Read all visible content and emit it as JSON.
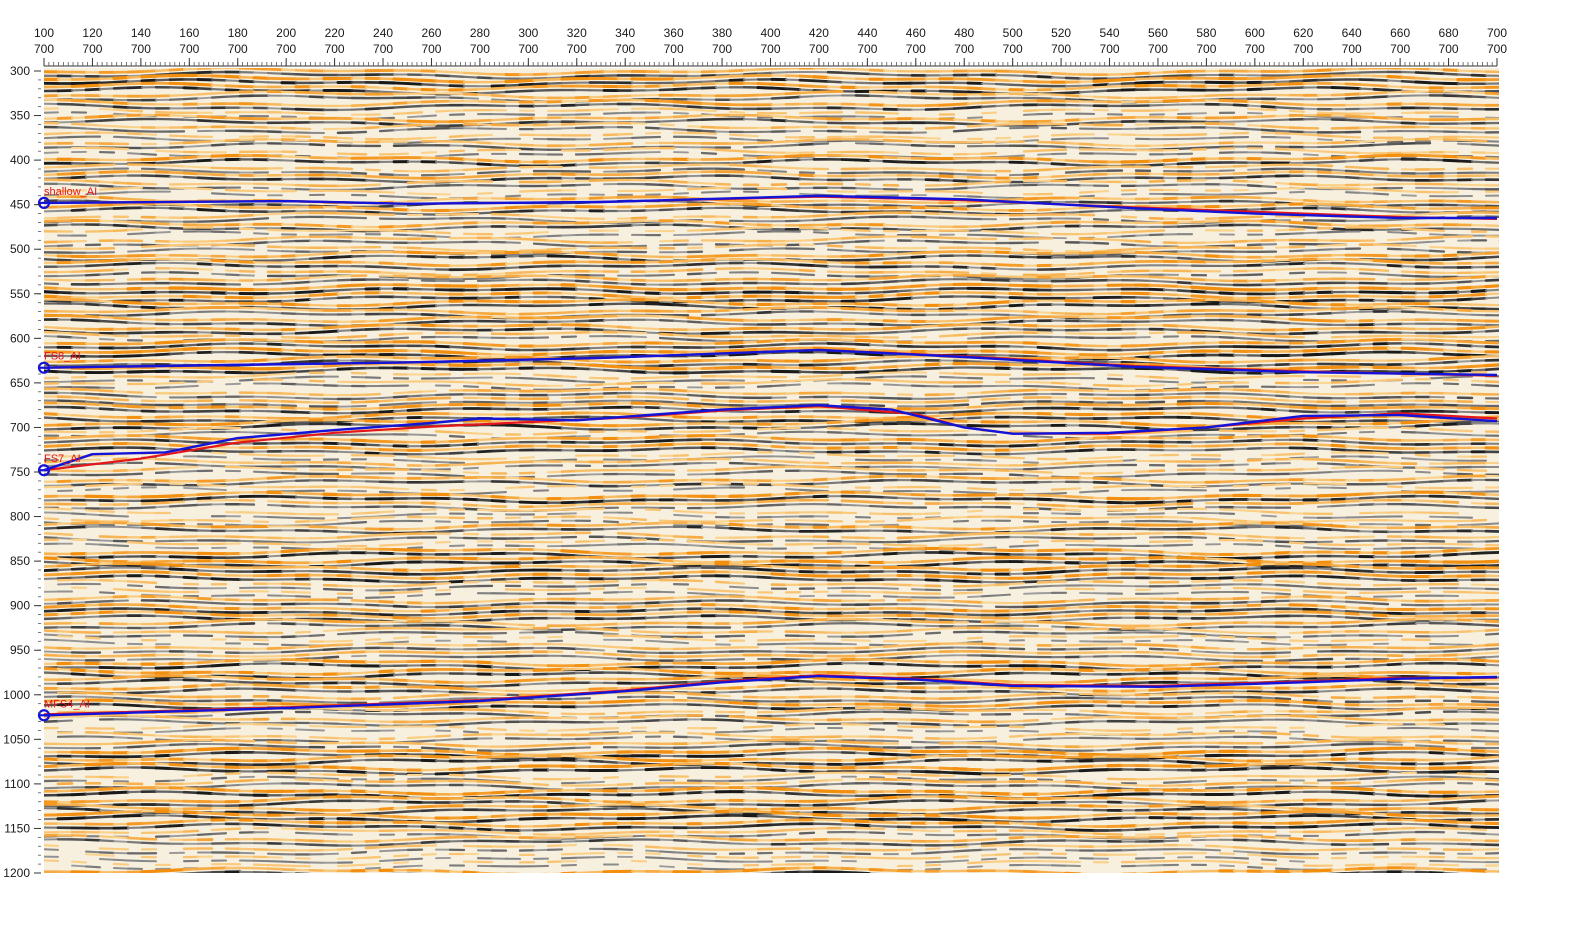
{
  "chart_data": {
    "type": "line",
    "title": "",
    "xlabel": "",
    "ylabel": "",
    "top_axis": {
      "trace_ticks": [
        "100",
        "120",
        "140",
        "160",
        "180",
        "200",
        "220",
        "240",
        "260",
        "280",
        "300",
        "320",
        "340",
        "360",
        "380",
        "400",
        "420",
        "440",
        "460",
        "480",
        "500",
        "520",
        "540",
        "560",
        "580",
        "600",
        "620",
        "640",
        "660",
        "680",
        "700"
      ],
      "line_ticks": [
        "700",
        "700",
        "700",
        "700",
        "700",
        "700",
        "700",
        "700",
        "700",
        "700",
        "700",
        "700",
        "700",
        "700",
        "700",
        "700",
        "700",
        "700",
        "700",
        "700",
        "700",
        "700",
        "700",
        "700",
        "700",
        "700",
        "700",
        "700",
        "700",
        "700",
        "700"
      ]
    },
    "xlim": [
      100,
      700
    ],
    "ylim": [
      300,
      1200
    ],
    "y_ticks": [
      "300",
      "350",
      "400",
      "450",
      "500",
      "550",
      "600",
      "650",
      "700",
      "750",
      "800",
      "850",
      "900",
      "950",
      "1000",
      "1050",
      "1100",
      "1150",
      "1200"
    ],
    "background": "seismic section, yellow/orange positive and gray/black negative amplitudes",
    "colors": {
      "reference": "#e4161b",
      "interpreted": "#1414d8",
      "positive": "#f2a618",
      "negative": "#262626"
    },
    "series": [
      {
        "name": "shallow_AI",
        "red": [
          [
            100,
            448
          ],
          [
            200,
            446
          ],
          [
            250,
            449
          ],
          [
            330,
            447
          ],
          [
            420,
            441
          ],
          [
            480,
            445
          ],
          [
            550,
            453
          ],
          [
            600,
            458
          ],
          [
            660,
            464
          ],
          [
            700,
            466
          ]
        ],
        "blue": [
          [
            100,
            448
          ],
          [
            200,
            446
          ],
          [
            250,
            449
          ],
          [
            330,
            447
          ],
          [
            420,
            440
          ],
          [
            480,
            444
          ],
          [
            550,
            454
          ],
          [
            600,
            460
          ],
          [
            660,
            465
          ],
          [
            700,
            465
          ]
        ]
      },
      {
        "name": "FS8_AI",
        "red": [
          [
            100,
            633
          ],
          [
            250,
            627
          ],
          [
            330,
            622
          ],
          [
            420,
            613
          ],
          [
            480,
            620
          ],
          [
            550,
            631
          ],
          [
            620,
            637
          ],
          [
            700,
            642
          ]
        ],
        "blue": [
          [
            100,
            633
          ],
          [
            250,
            627
          ],
          [
            330,
            622
          ],
          [
            420,
            613
          ],
          [
            480,
            621
          ],
          [
            550,
            632
          ],
          [
            620,
            638
          ],
          [
            700,
            641
          ]
        ]
      },
      {
        "name": "FS7_AI",
        "red": [
          [
            100,
            748
          ],
          [
            140,
            735
          ],
          [
            180,
            717
          ],
          [
            220,
            706
          ],
          [
            260,
            699
          ],
          [
            300,
            694
          ],
          [
            340,
            689
          ],
          [
            380,
            681
          ],
          [
            420,
            676
          ],
          [
            460,
            685
          ],
          [
            480,
            700
          ],
          [
            500,
            707
          ],
          [
            540,
            707
          ],
          [
            580,
            700
          ],
          [
            620,
            690
          ],
          [
            660,
            684
          ],
          [
            700,
            690
          ]
        ],
        "blue": [
          [
            100,
            748
          ],
          [
            120,
            730
          ],
          [
            150,
            728
          ],
          [
            180,
            712
          ],
          [
            220,
            703
          ],
          [
            260,
            695
          ],
          [
            280,
            690
          ],
          [
            320,
            692
          ],
          [
            380,
            680
          ],
          [
            420,
            675
          ],
          [
            450,
            680
          ],
          [
            480,
            700
          ],
          [
            500,
            707
          ],
          [
            540,
            706
          ],
          [
            580,
            700
          ],
          [
            620,
            687
          ],
          [
            660,
            686
          ],
          [
            700,
            693
          ]
        ]
      },
      {
        "name": "MFS4_AI",
        "red": [
          [
            100,
            1022
          ],
          [
            200,
            1014
          ],
          [
            280,
            1006
          ],
          [
            340,
            995
          ],
          [
            380,
            985
          ],
          [
            420,
            978
          ],
          [
            460,
            982
          ],
          [
            500,
            989
          ],
          [
            560,
            990
          ],
          [
            620,
            985
          ],
          [
            660,
            981
          ],
          [
            700,
            981
          ]
        ],
        "blue": [
          [
            100,
            1023
          ],
          [
            200,
            1015
          ],
          [
            280,
            1007
          ],
          [
            340,
            996
          ],
          [
            380,
            986
          ],
          [
            420,
            979
          ],
          [
            460,
            983
          ],
          [
            500,
            990
          ],
          [
            560,
            991
          ],
          [
            620,
            986
          ],
          [
            660,
            982
          ],
          [
            700,
            980
          ]
        ]
      }
    ]
  }
}
